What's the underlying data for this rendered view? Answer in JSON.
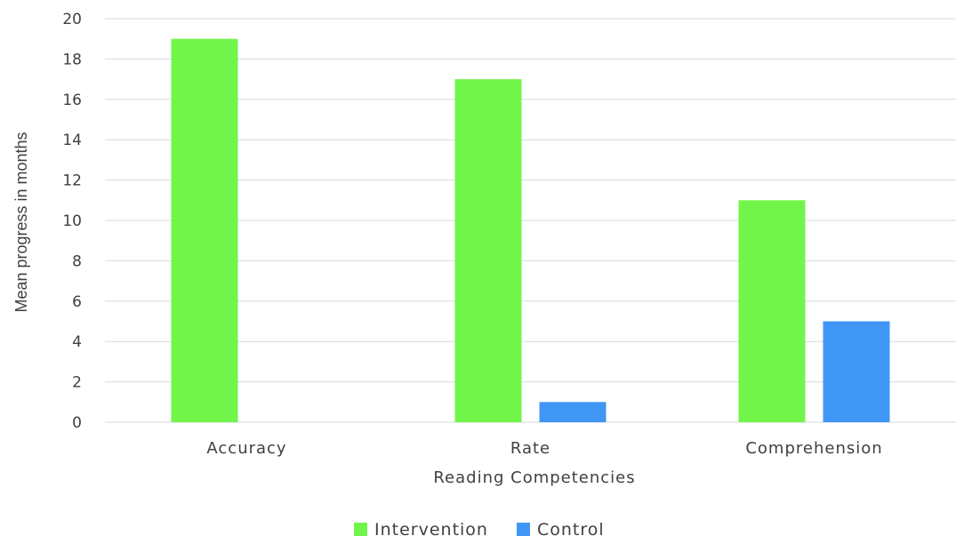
{
  "chart_data": {
    "type": "bar",
    "categories": [
      "Accuracy",
      "Rate",
      "Comprehension"
    ],
    "series": [
      {
        "name": "Intervention",
        "values": [
          19,
          17,
          11
        ],
        "color": "#72f54a"
      },
      {
        "name": "Control",
        "values": [
          0,
          1,
          5
        ],
        "color": "#4096f5"
      }
    ],
    "xlabel": "Reading Competencies",
    "ylabel": "Mean progress in months",
    "ylim": [
      0,
      20
    ],
    "yticks": [
      0,
      2,
      4,
      6,
      8,
      10,
      12,
      14,
      16,
      18,
      20
    ],
    "grid": true,
    "legend_position": "bottom"
  }
}
